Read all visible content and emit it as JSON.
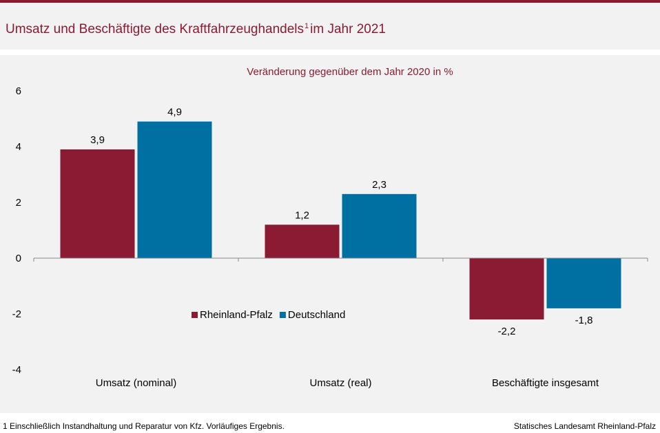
{
  "header": {
    "title": "Umsatz und Beschäftigte des Kraftfahrzeughandels",
    "title_sup": "1",
    "title_suffix": "im Jahr 2021"
  },
  "footer": {
    "footnote": "1 Einschließlich Instandhaltung und Reparatur von Kfz. Vorläufiges Ergebnis.",
    "source": "Statisches Landesamt Rheinland-Pfalz"
  },
  "colors": {
    "accent": "#8b1a33",
    "rheinland_pfalz": "#8b1a33",
    "deutschland": "#0070a3",
    "panel_background": "#f2f2f2"
  },
  "chart_data": {
    "type": "bar",
    "title": "Veränderung gegenüber dem Jahr 2020 in %",
    "categories": [
      "Umsatz (nominal)",
      "Umsatz (real)",
      "Beschäftigte insgesamt"
    ],
    "series": [
      {
        "name": "Rheinland-Pfalz",
        "values": [
          3.9,
          1.2,
          -2.2
        ],
        "labels": [
          "3,9",
          "1,2",
          "-2,2"
        ],
        "color": "#8b1a33"
      },
      {
        "name": "Deutschland",
        "values": [
          4.9,
          2.3,
          -1.8
        ],
        "labels": [
          "4,9",
          "2,3",
          "-1,8"
        ],
        "color": "#0070a3"
      }
    ],
    "ylim": [
      -4,
      6
    ],
    "yticks": [
      6,
      4,
      2,
      0,
      -2,
      -4
    ],
    "grid": false,
    "legend_position": "center"
  }
}
